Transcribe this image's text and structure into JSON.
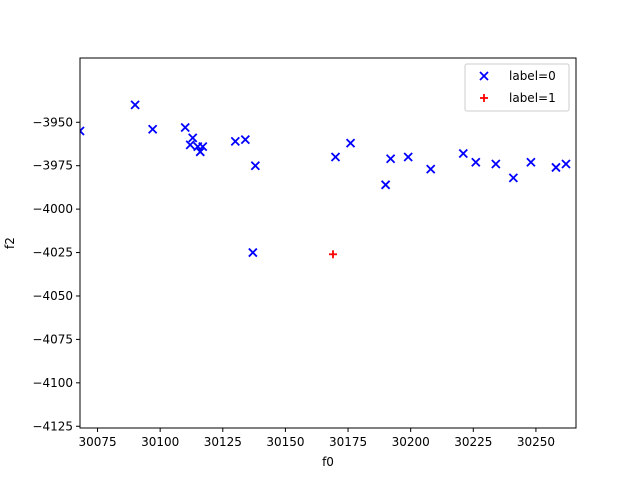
{
  "chart_data": {
    "type": "scatter",
    "xlabel": "f0",
    "ylabel": "f2",
    "xlim": [
      30068,
      30266
    ],
    "ylim": [
      -4126,
      -3913
    ],
    "grid": false,
    "legend_position": "top-right",
    "x_ticks": [
      30075,
      30100,
      30125,
      30150,
      30175,
      30200,
      30225,
      30250
    ],
    "y_ticks": [
      -3950,
      -3975,
      -4000,
      -4025,
      -4050,
      -4075,
      -4100,
      -4125
    ],
    "series": [
      {
        "name": "label=0",
        "marker": "x",
        "color": "#0000ff",
        "points": [
          [
            30068,
            -3955
          ],
          [
            30090,
            -3940
          ],
          [
            30097,
            -3954
          ],
          [
            30110,
            -3953
          ],
          [
            30113,
            -3959
          ],
          [
            30112,
            -3963
          ],
          [
            30115,
            -3964
          ],
          [
            30116,
            -3967
          ],
          [
            30117,
            -3964
          ],
          [
            30130,
            -3961
          ],
          [
            30134,
            -3960
          ],
          [
            30138,
            -3975
          ],
          [
            30137,
            -4025
          ],
          [
            30170,
            -3970
          ],
          [
            30176,
            -3962
          ],
          [
            30190,
            -3986
          ],
          [
            30192,
            -3971
          ],
          [
            30199,
            -3970
          ],
          [
            30208,
            -3977
          ],
          [
            30221,
            -3968
          ],
          [
            30226,
            -3973
          ],
          [
            30234,
            -3974
          ],
          [
            30241,
            -3982
          ],
          [
            30248,
            -3973
          ],
          [
            30258,
            -3976
          ],
          [
            30262,
            -3974
          ]
        ]
      },
      {
        "name": "label=1",
        "marker": "+",
        "color": "#ff0000",
        "points": [
          [
            30169,
            -4026
          ]
        ]
      }
    ]
  }
}
